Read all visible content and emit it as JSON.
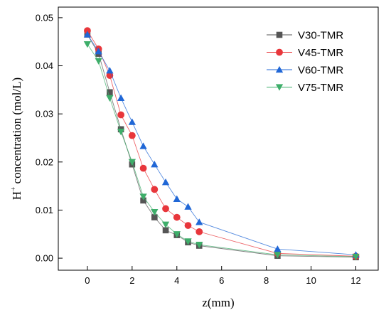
{
  "chart_data": {
    "type": "line",
    "xlabel": "z(mm)",
    "ylabel_main": "H",
    "ylabel_sup": "+",
    "ylabel_rest": " concentration (mol/L)",
    "xlim": [
      -1.3,
      13.0
    ],
    "ylim": [
      -0.0025,
      0.0522
    ],
    "xticks": [
      0,
      2,
      4,
      6,
      8,
      10,
      12
    ],
    "yticks": [
      0.0,
      0.01,
      0.02,
      0.03,
      0.04,
      0.05
    ],
    "ytick_labels": [
      "0.00",
      "0.01",
      "0.02",
      "0.03",
      "0.04",
      "0.05"
    ],
    "legend_position": "top-right",
    "series": [
      {
        "name": "V30-TMR",
        "color": "#555555",
        "marker": "square",
        "x": [
          0,
          0.5,
          1.0,
          1.5,
          2.0,
          2.5,
          3.0,
          3.5,
          4.0,
          4.5,
          5.0,
          8.5,
          12.0
        ],
        "y": [
          0.0465,
          0.0425,
          0.0345,
          0.0268,
          0.0195,
          0.012,
          0.0085,
          0.0058,
          0.0048,
          0.0033,
          0.0026,
          0.0005,
          0.0002
        ]
      },
      {
        "name": "V45-TMR",
        "color": "#E8363B",
        "marker": "circle",
        "x": [
          0,
          0.5,
          1.0,
          1.5,
          2.0,
          2.5,
          3.0,
          3.5,
          4.0,
          4.5,
          5.0,
          8.5,
          12.0
        ],
        "y": [
          0.0473,
          0.0435,
          0.038,
          0.0298,
          0.0255,
          0.0187,
          0.0143,
          0.0103,
          0.0085,
          0.0068,
          0.0055,
          0.001,
          0.0004
        ]
      },
      {
        "name": "V60-TMR",
        "color": "#2067D6",
        "marker": "triangle-up",
        "x": [
          0,
          0.5,
          1.0,
          1.5,
          2.0,
          2.5,
          3.0,
          3.5,
          4.0,
          4.5,
          5.0,
          8.5,
          12.0
        ],
        "y": [
          0.0465,
          0.043,
          0.039,
          0.0333,
          0.0283,
          0.0233,
          0.0195,
          0.0158,
          0.0123,
          0.0107,
          0.0075,
          0.0019,
          0.0007
        ]
      },
      {
        "name": "V75-TMR",
        "color": "#3EAE6A",
        "marker": "triangle-down",
        "x": [
          0,
          0.5,
          1.0,
          1.5,
          2.0,
          2.5,
          3.0,
          3.5,
          4.0,
          4.5,
          5.0,
          8.5,
          12.0
        ],
        "y": [
          0.0445,
          0.041,
          0.0333,
          0.0263,
          0.02,
          0.0128,
          0.0096,
          0.007,
          0.005,
          0.0035,
          0.0028,
          0.0007,
          0.0003
        ]
      }
    ]
  }
}
